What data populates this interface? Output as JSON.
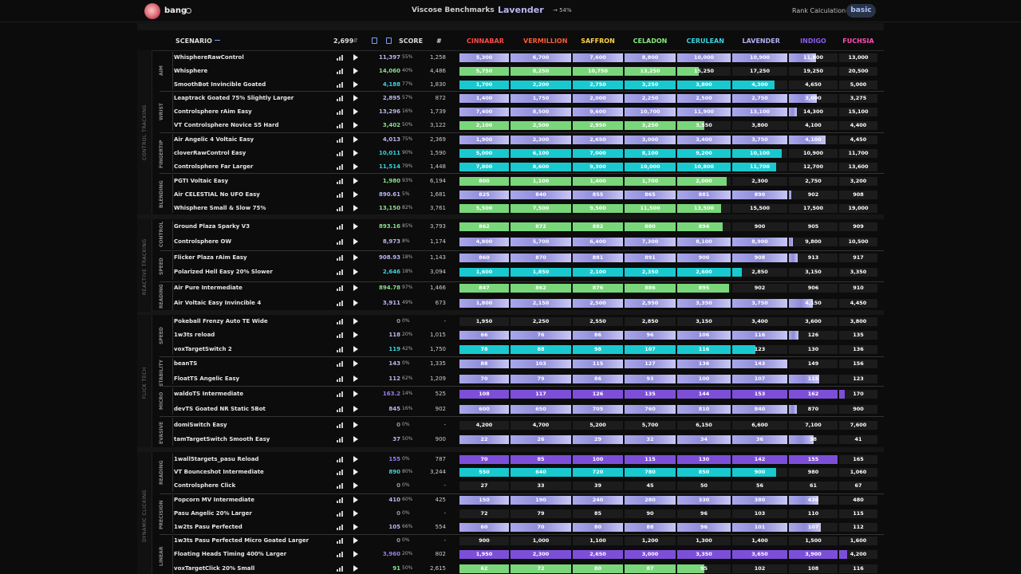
{
  "header": {
    "username": "bang",
    "app_title": "Viscose Benchmarks",
    "rank_name": "Lavender",
    "progress_text": "→ 54%",
    "rank_calc_label": "Rank Calculation",
    "rank_calc_value": "basic"
  },
  "columns": {
    "scenario": "SCENARIO",
    "total": "2,699",
    "score": "SCORE",
    "count": "#",
    "ranks": [
      "CINNABAR",
      "VERMILLION",
      "SAFFRON",
      "CELADON",
      "CERULEAN",
      "LAVENDER",
      "INDIGO",
      "FUCHSIA"
    ],
    "rank_colors": [
      "#ff4a4a",
      "#ff5a37",
      "#ffd34a",
      "#86e87d",
      "#39d4e0",
      "#b3b0f5",
      "#8a5cf0",
      "#ff50b4"
    ]
  },
  "categories": [
    {
      "name": "CONTROL TRACKING",
      "subs": [
        "AIM",
        "WRIST",
        "FINGERTIP",
        "BLENDING"
      ]
    },
    {
      "name": "REACTIVE TRACKING",
      "subs": [
        "CONTROL",
        "SPEED",
        "READING"
      ]
    },
    {
      "name": "FLICK TECH",
      "subs": [
        "SPEED",
        "STABILITY",
        "MICRO",
        "EVASIVE"
      ]
    },
    {
      "name": "DYNAMIC CLICKING",
      "subs": [
        "READING",
        "PRECISION",
        "LINEAR"
      ]
    }
  ],
  "rows": [
    {
      "name": "WhisphereRawControl",
      "score": "11,397",
      "pct": "55%",
      "count": "1,258",
      "thr": [
        "5,300",
        "6,700",
        "7,600",
        "8,800",
        "10,000",
        "10,900",
        "11,800",
        "13,000"
      ],
      "fills": [
        1,
        1,
        1,
        1,
        1,
        1,
        0.55,
        0
      ],
      "color": "lav"
    },
    {
      "name": "Whisphere",
      "score": "14,060",
      "pct": "40%",
      "count": "4,486",
      "thr": [
        "5,750",
        "8,250",
        "10,750",
        "13,250",
        "15,250",
        "17,250",
        "19,250",
        "20,500"
      ],
      "fills": [
        1,
        1,
        1,
        1,
        0.4,
        0,
        0,
        0
      ],
      "color": "cel"
    },
    {
      "name": "SmoothBot Invincible Goated",
      "score": "4,188",
      "pct": "77%",
      "count": "1,830",
      "thr": [
        "1,700",
        "2,200",
        "2,750",
        "3,250",
        "3,800",
        "4,300",
        "4,650",
        "5,000"
      ],
      "fills": [
        1,
        1,
        1,
        1,
        1,
        0.77,
        0,
        0
      ],
      "color": "cer"
    },
    {
      "name": "Leaptrack Goated 75% Slightly Larger",
      "score": "2,895",
      "pct": "57%",
      "count": "872",
      "thr": [
        "1,400",
        "1,750",
        "2,000",
        "2,250",
        "2,500",
        "2,750",
        "3,000",
        "3,275"
      ],
      "fills": [
        1,
        1,
        1,
        1,
        1,
        1,
        0.57,
        0
      ],
      "color": "lav"
    },
    {
      "name": "Controlsphere rAim Easy",
      "score": "13,296",
      "pct": "16%",
      "count": "1,739",
      "thr": [
        "7,400",
        "8,500",
        "9,600",
        "10,700",
        "11,900",
        "13,100",
        "14,300",
        "15,100"
      ],
      "fills": [
        1,
        1,
        1,
        1,
        1,
        1,
        0.16,
        0
      ],
      "color": "lav"
    },
    {
      "name": "VT Controlsphere Novice S5 Hard",
      "score": "3,402",
      "pct": "50%",
      "count": "3,122",
      "thr": [
        "2,100",
        "2,500",
        "2,950",
        "3,250",
        "3,550",
        "3,800",
        "4,100",
        "4,400"
      ],
      "fills": [
        1,
        1,
        1,
        1,
        0.5,
        0,
        0,
        0
      ],
      "color": "cel"
    },
    {
      "name": "Air Angelic 4 Voltaic Easy",
      "score": "4,013",
      "pct": "75%",
      "count": "2,369",
      "thr": [
        "1,900",
        "2,300",
        "2,650",
        "3,000",
        "3,400",
        "3,750",
        "4,100",
        "4,450"
      ],
      "fills": [
        1,
        1,
        1,
        1,
        1,
        1,
        0.75,
        0
      ],
      "color": "lav"
    },
    {
      "name": "cloverRawControl Easy",
      "score": "10,011",
      "pct": "90%",
      "count": "1,590",
      "thr": [
        "5,000",
        "6,100",
        "7,000",
        "8,100",
        "9,200",
        "10,100",
        "10,900",
        "11,700"
      ],
      "fills": [
        1,
        1,
        1,
        1,
        1,
        0.9,
        0,
        0
      ],
      "color": "cer"
    },
    {
      "name": "Controlsphere Far Larger",
      "score": "11,514",
      "pct": "79%",
      "count": "1,448",
      "thr": [
        "7,800",
        "8,600",
        "9,300",
        "10,000",
        "10,800",
        "11,700",
        "12,700",
        "13,600"
      ],
      "fills": [
        1,
        1,
        1,
        1,
        1,
        0.79,
        0,
        0
      ],
      "color": "cer"
    },
    {
      "name": "PGTI Voltaic Easy",
      "score": "1,980",
      "pct": "93%",
      "count": "6,194",
      "thr": [
        "800",
        "1,100",
        "1,400",
        "1,700",
        "2,000",
        "2,300",
        "2,750",
        "3,200"
      ],
      "fills": [
        1,
        1,
        1,
        1,
        0.93,
        0,
        0,
        0
      ],
      "color": "cel"
    },
    {
      "name": "Air CELESTIAL No UFO Easy",
      "score": "890.61",
      "pct": "5%",
      "count": "1,681",
      "thr": [
        "825",
        "840",
        "855",
        "865",
        "881",
        "890",
        "902",
        "908"
      ],
      "fills": [
        1,
        1,
        1,
        1,
        1,
        1,
        0.05,
        0
      ],
      "color": "lav"
    },
    {
      "name": "Whisphere Small & Slow 75%",
      "score": "13,150",
      "pct": "82%",
      "count": "3,761",
      "thr": [
        "5,500",
        "7,500",
        "9,500",
        "11,500",
        "13,500",
        "15,500",
        "17,500",
        "19,000"
      ],
      "fills": [
        1,
        1,
        1,
        1,
        0.82,
        0,
        0,
        0
      ],
      "color": "cel"
    },
    {
      "name": "Ground Plaza Sparky V3",
      "score": "893.16",
      "pct": "85%",
      "count": "3,793",
      "thr": [
        "862",
        "872",
        "882",
        "880",
        "894",
        "900",
        "905",
        "909"
      ],
      "fills": [
        1,
        1,
        1,
        1,
        0.85,
        0,
        0,
        0
      ],
      "color": "cel"
    },
    {
      "name": "Controlsphere OW",
      "score": "8,973",
      "pct": "8%",
      "count": "1,174",
      "thr": [
        "4,800",
        "5,700",
        "6,400",
        "7,300",
        "8,100",
        "8,900",
        "9,800",
        "10,500"
      ],
      "fills": [
        1,
        1,
        1,
        1,
        1,
        1,
        0.08,
        0
      ],
      "color": "lav"
    },
    {
      "name": "Flicker Plaza rAim Easy",
      "score": "908.93",
      "pct": "18%",
      "count": "1,143",
      "thr": [
        "860",
        "870",
        "881",
        "891",
        "900",
        "908",
        "913",
        "917"
      ],
      "fills": [
        1,
        1,
        1,
        1,
        1,
        1,
        0.18,
        0
      ],
      "color": "lav"
    },
    {
      "name": "Polarized Hell Easy 20% Slower",
      "score": "2,646",
      "pct": "18%",
      "count": "3,094",
      "thr": [
        "1,600",
        "1,850",
        "2,100",
        "2,350",
        "2,600",
        "2,850",
        "3,150",
        "3,350"
      ],
      "fills": [
        1,
        1,
        1,
        1,
        1,
        0.18,
        0,
        0
      ],
      "color": "cer"
    },
    {
      "name": "Air Pure Intermediate",
      "score": "894.78",
      "pct": "97%",
      "count": "1,466",
      "thr": [
        "847",
        "862",
        "876",
        "886",
        "895",
        "902",
        "906",
        "910"
      ],
      "fills": [
        1,
        1,
        1,
        1,
        0.97,
        0,
        0,
        0
      ],
      "color": "cel"
    },
    {
      "name": "Air Voltaic Easy Invincible 4",
      "score": "3,911",
      "pct": "49%",
      "count": "673",
      "thr": [
        "1,800",
        "2,150",
        "2,500",
        "2,950",
        "3,350",
        "3,750",
        "4,150",
        "4,450"
      ],
      "fills": [
        1,
        1,
        1,
        1,
        1,
        1,
        0.49,
        0
      ],
      "color": "lav"
    },
    {
      "name": "Pokeball Frenzy Auto TE Wide",
      "score": "0",
      "pct": "0%",
      "count": "-",
      "thr": [
        "1,950",
        "2,250",
        "2,550",
        "2,850",
        "3,150",
        "3,400",
        "3,600",
        "3,800"
      ],
      "fills": [
        0,
        0,
        0,
        0,
        0,
        0,
        0,
        0
      ],
      "color": "none"
    },
    {
      "name": "1w3ts reload",
      "score": "118",
      "pct": "20%",
      "count": "1,015",
      "thr": [
        "66",
        "76",
        "86",
        "96",
        "106",
        "116",
        "126",
        "135"
      ],
      "fills": [
        1,
        1,
        1,
        1,
        1,
        1,
        0.2,
        0
      ],
      "color": "lav"
    },
    {
      "name": "voxTargetSwitch 2",
      "score": "119",
      "pct": "42%",
      "count": "1,750",
      "thr": [
        "78",
        "88",
        "98",
        "107",
        "116",
        "123",
        "130",
        "136"
      ],
      "fills": [
        1,
        1,
        1,
        1,
        1,
        0.42,
        0,
        0
      ],
      "color": "cer"
    },
    {
      "name": "beanTS",
      "score": "143",
      "pct": "0%",
      "count": "1,335",
      "thr": [
        "88",
        "103",
        "115",
        "127",
        "136",
        "143",
        "149",
        "156"
      ],
      "fills": [
        1,
        1,
        1,
        1,
        1,
        1,
        0,
        0
      ],
      "color": "lav"
    },
    {
      "name": "FloatTS Angelic Easy",
      "score": "112",
      "pct": "62%",
      "count": "1,209",
      "thr": [
        "70",
        "79",
        "86",
        "93",
        "100",
        "107",
        "115",
        "123"
      ],
      "fills": [
        1,
        1,
        1,
        1,
        1,
        1,
        0.62,
        0
      ],
      "color": "lav"
    },
    {
      "name": "waldoTS Intermediate",
      "score": "163.2",
      "pct": "14%",
      "count": "525",
      "thr": [
        "108",
        "117",
        "126",
        "135",
        "144",
        "153",
        "162",
        "170"
      ],
      "fills": [
        1,
        1,
        1,
        1,
        1,
        1,
        1,
        0.14
      ],
      "color": "ind"
    },
    {
      "name": "devTS Goated NR Static 5Bot",
      "score": "845",
      "pct": "16%",
      "count": "902",
      "thr": [
        "600",
        "650",
        "705",
        "760",
        "810",
        "840",
        "870",
        "900"
      ],
      "fills": [
        1,
        1,
        1,
        1,
        1,
        1,
        0.16,
        0
      ],
      "color": "lav"
    },
    {
      "name": "domiSwitch Easy",
      "score": "0",
      "pct": "0%",
      "count": "-",
      "thr": [
        "4,200",
        "4,700",
        "5,200",
        "5,700",
        "6,150",
        "6,600",
        "7,100",
        "7,600"
      ],
      "fills": [
        0,
        0,
        0,
        0,
        0,
        0,
        0,
        0
      ],
      "color": "none"
    },
    {
      "name": "tamTargetSwitch Smooth Easy",
      "score": "37",
      "pct": "50%",
      "count": "900",
      "thr": [
        "22",
        "26",
        "29",
        "32",
        "34",
        "36",
        "38",
        "41"
      ],
      "fills": [
        1,
        1,
        1,
        1,
        1,
        1,
        0.5,
        0
      ],
      "color": "lav"
    },
    {
      "name": "1wall5targets_pasu Reload",
      "score": "155",
      "pct": "0%",
      "count": "787",
      "thr": [
        "70",
        "85",
        "100",
        "115",
        "130",
        "142",
        "155",
        "165"
      ],
      "fills": [
        1,
        1,
        1,
        1,
        1,
        1,
        1,
        0
      ],
      "color": "ind"
    },
    {
      "name": "VT Bounceshot Intermediate",
      "score": "890",
      "pct": "80%",
      "count": "3,244",
      "thr": [
        "550",
        "640",
        "720",
        "780",
        "850",
        "900",
        "980",
        "1,060"
      ],
      "fills": [
        1,
        1,
        1,
        1,
        1,
        0.8,
        0,
        0
      ],
      "color": "cer"
    },
    {
      "name": "Controlsphere Click",
      "score": "0",
      "pct": "0%",
      "count": "-",
      "thr": [
        "27",
        "33",
        "39",
        "45",
        "50",
        "56",
        "61",
        "67"
      ],
      "fills": [
        0,
        0,
        0,
        0,
        0,
        0,
        0,
        0
      ],
      "color": "none"
    },
    {
      "name": "Popcorn MV Intermediate",
      "score": "410",
      "pct": "60%",
      "count": "425",
      "thr": [
        "150",
        "190",
        "240",
        "280",
        "330",
        "380",
        "430",
        "480"
      ],
      "fills": [
        1,
        1,
        1,
        1,
        1,
        1,
        0.6,
        0
      ],
      "color": "lav"
    },
    {
      "name": "Pasu Angelic 20% Larger",
      "score": "0",
      "pct": "0%",
      "count": "-",
      "thr": [
        "72",
        "79",
        "85",
        "90",
        "96",
        "103",
        "110",
        "115"
      ],
      "fills": [
        0,
        0,
        0,
        0,
        0,
        0,
        0,
        0
      ],
      "color": "none"
    },
    {
      "name": "1w2ts Pasu Perfected",
      "score": "105",
      "pct": "66%",
      "count": "554",
      "thr": [
        "60",
        "70",
        "80",
        "88",
        "96",
        "101",
        "107",
        "112"
      ],
      "fills": [
        1,
        1,
        1,
        1,
        1,
        1,
        0.66,
        0
      ],
      "color": "lav"
    },
    {
      "name": "1w3ts Pasu Perfected Micro Goated Larger",
      "score": "0",
      "pct": "0%",
      "count": "-",
      "thr": [
        "900",
        "1,000",
        "1,100",
        "1,200",
        "1,300",
        "1,400",
        "1,500",
        "1,600"
      ],
      "fills": [
        0,
        0,
        0,
        0,
        0,
        0,
        0,
        0
      ],
      "color": "none"
    },
    {
      "name": "Floating Heads Timing 400% Larger",
      "score": "3,960",
      "pct": "20%",
      "count": "802",
      "thr": [
        "1,950",
        "2,300",
        "2,650",
        "3,000",
        "3,350",
        "3,650",
        "3,900",
        "4,200"
      ],
      "fills": [
        1,
        1,
        1,
        1,
        1,
        1,
        1,
        0.2
      ],
      "color": "ind"
    },
    {
      "name": "voxTargetClick 20% Small",
      "score": "91",
      "pct": "50%",
      "count": "2,615",
      "thr": [
        "62",
        "72",
        "80",
        "87",
        "95",
        "102",
        "108",
        "116"
      ],
      "fills": [
        1,
        1,
        1,
        1,
        0.5,
        0,
        0,
        0
      ],
      "color": "cel"
    }
  ]
}
